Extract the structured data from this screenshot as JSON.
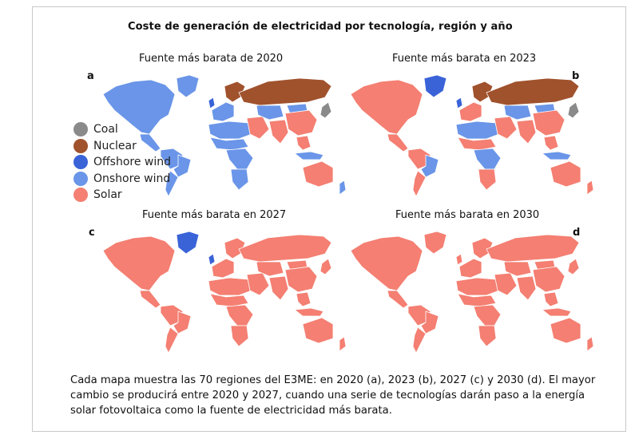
{
  "title": "Coste de generación de electricidad por tecnología, región y año",
  "colors": {
    "coal": "#8a8a8a",
    "nuclear": "#a0522d",
    "offshore_wind": "#3a63d8",
    "onshore_wind": "#6a95e8",
    "solar": "#f47f72"
  },
  "legend": [
    {
      "label": "Coal",
      "color": "#8a8a8a"
    },
    {
      "label": "Nuclear",
      "color": "#a0522d"
    },
    {
      "label": "Offshore wind",
      "color": "#3a63d8"
    },
    {
      "label": "Onshore wind",
      "color": "#6a95e8"
    },
    {
      "label": "Solar",
      "color": "#f47f72"
    }
  ],
  "panels": [
    {
      "letter": "a",
      "title": "Fuente más barata de 2020",
      "regions": {
        "north_america": "onshore_wind",
        "central_america": "onshore_wind",
        "greenland": "onshore_wind",
        "south_america": "onshore_wind",
        "brazil_east": "onshore_wind",
        "southern_cone": "onshore_wind",
        "western_europe": "onshore_wind",
        "uk": "offshore_wind",
        "scandinavia": "nuclear",
        "russia": "nuclear",
        "north_africa": "onshore_wind",
        "sahel": "onshore_wind",
        "central_africa": "onshore_wind",
        "southern_africa": "onshore_wind",
        "middle_east": "solar",
        "central_asia": "onshore_wind",
        "south_asia": "solar",
        "china": "solar",
        "mongolia": "onshore_wind",
        "southeast_asia": "solar",
        "japan": "coal",
        "indonesia": "onshore_wind",
        "australia": "solar",
        "new_zealand": "onshore_wind"
      }
    },
    {
      "letter": "b",
      "title": "Fuente más barata en 2023",
      "regions": {
        "north_america": "solar",
        "central_america": "solar",
        "greenland": "offshore_wind",
        "south_america": "solar",
        "brazil_east": "onshore_wind",
        "southern_cone": "solar",
        "western_europe": "solar",
        "uk": "offshore_wind",
        "scandinavia": "nuclear",
        "russia": "nuclear",
        "north_africa": "onshore_wind",
        "sahel": "solar",
        "central_africa": "onshore_wind",
        "southern_africa": "solar",
        "middle_east": "solar",
        "central_asia": "onshore_wind",
        "south_asia": "solar",
        "china": "solar",
        "mongolia": "onshore_wind",
        "southeast_asia": "solar",
        "japan": "coal",
        "indonesia": "onshore_wind",
        "australia": "solar",
        "new_zealand": "solar"
      }
    },
    {
      "letter": "c",
      "title": "Fuente más barata en 2027",
      "regions": {
        "north_america": "solar",
        "central_america": "solar",
        "greenland": "offshore_wind",
        "south_america": "solar",
        "brazil_east": "solar",
        "southern_cone": "solar",
        "western_europe": "solar",
        "uk": "offshore_wind",
        "scandinavia": "solar",
        "russia": "solar",
        "north_africa": "solar",
        "sahel": "solar",
        "central_africa": "solar",
        "southern_africa": "solar",
        "middle_east": "solar",
        "central_asia": "solar",
        "south_asia": "solar",
        "china": "solar",
        "mongolia": "solar",
        "southeast_asia": "solar",
        "japan": "solar",
        "indonesia": "solar",
        "australia": "solar",
        "new_zealand": "solar"
      }
    },
    {
      "letter": "d",
      "title": "Fuente más barata en 2030",
      "regions": {
        "north_america": "solar",
        "central_america": "solar",
        "greenland": "solar",
        "south_america": "solar",
        "brazil_east": "solar",
        "southern_cone": "solar",
        "western_europe": "solar",
        "uk": "solar",
        "scandinavia": "solar",
        "russia": "solar",
        "north_africa": "solar",
        "sahel": "solar",
        "central_africa": "solar",
        "southern_africa": "solar",
        "middle_east": "solar",
        "central_asia": "solar",
        "south_asia": "solar",
        "china": "solar",
        "mongolia": "solar",
        "southeast_asia": "solar",
        "japan": "solar",
        "indonesia": "solar",
        "australia": "solar",
        "new_zealand": "solar"
      }
    }
  ],
  "caption": [
    "Cada mapa muestra las 70 regiones del E3ME: en 2020 (a), 2023 (b), 2027 (c) y 2030 (d). El mayor",
    "cambio se  producirá entre 2020 y 2027, cuando una serie de tecnologías darán paso a la energía",
    "solar fotovoltaica como la fuente de electricidad más barata."
  ]
}
